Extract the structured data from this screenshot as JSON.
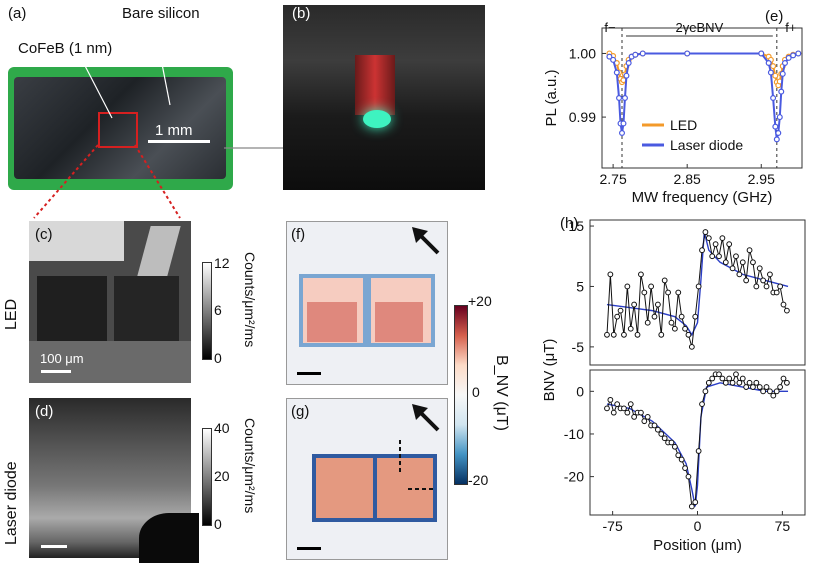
{
  "panels": {
    "a": {
      "label": "(a)",
      "bare_silicon": "Bare silicon",
      "cofeb": "CoFeB (1 nm)",
      "scale": "1 mm"
    },
    "b": {
      "label": "(b)"
    },
    "c": {
      "label": "(c)",
      "scale": "100 μm"
    },
    "d": {
      "label": "(d)"
    },
    "e": {
      "label": "(e)"
    },
    "f": {
      "label": "(f)"
    },
    "g": {
      "label": "(g)"
    },
    "h": {
      "label": "(h)"
    }
  },
  "rows": {
    "led": "LED",
    "laser": "Laser diode"
  },
  "colorbars": {
    "c": {
      "ticks": [
        "12",
        "6",
        "0"
      ],
      "label": "Counts/μm²/ms"
    },
    "d": {
      "ticks": [
        "40",
        "20",
        "0"
      ],
      "label": "Counts/μm²/ms"
    },
    "b": {
      "ticks": [
        "+20",
        "0",
        "-20"
      ],
      "label": "B_NV (μT)"
    }
  },
  "colors": {
    "led": "#f39a2a",
    "laser": "#4a5ae0",
    "diverging_pos": "#b2182b",
    "diverging_neg": "#2166ac",
    "gray": "#888888"
  },
  "chart_data": [
    {
      "id": "e",
      "type": "line",
      "xlabel": "MW frequency (GHz)",
      "ylabel": "PL (a.u.)",
      "xlim": [
        2.735,
        3.005
      ],
      "ylim": [
        0.982,
        1.004
      ],
      "xticks": [
        "2.75",
        "2.85",
        "2.95"
      ],
      "yticks": [
        "1.00",
        "0.99"
      ],
      "annotations": {
        "f_minus": "f−",
        "f_plus": "f+",
        "splitting": "2γeBNV"
      },
      "series": [
        {
          "name": "LED",
          "color": "#f39a2a",
          "x": [
            2.745,
            2.75,
            2.755,
            2.758,
            2.76,
            2.762,
            2.764,
            2.766,
            2.768,
            2.771,
            2.775,
            2.78,
            2.79,
            2.85,
            2.95,
            2.96,
            2.963,
            2.966,
            2.969,
            2.971,
            2.973,
            2.975,
            2.977,
            2.979,
            2.982,
            2.987,
            2.993,
            3.0
          ],
          "y": [
            1.0,
            0.9996,
            0.9985,
            0.997,
            0.996,
            0.9955,
            0.9958,
            0.9967,
            0.998,
            0.999,
            0.9995,
            0.9998,
            1.0,
            1.0,
            1.0,
            0.9995,
            0.999,
            0.998,
            0.9965,
            0.9955,
            0.995,
            0.9956,
            0.9968,
            0.998,
            0.999,
            0.9995,
            0.9998,
            1.0
          ]
        },
        {
          "name": "Laser diode",
          "color": "#4a5ae0",
          "x": [
            2.745,
            2.75,
            2.755,
            2.758,
            2.76,
            2.762,
            2.764,
            2.766,
            2.768,
            2.771,
            2.775,
            2.78,
            2.79,
            2.85,
            2.95,
            2.96,
            2.963,
            2.966,
            2.969,
            2.971,
            2.973,
            2.975,
            2.977,
            2.979,
            2.982,
            2.987,
            2.993,
            3.0
          ],
          "y": [
            0.9995,
            0.999,
            0.997,
            0.993,
            0.989,
            0.9875,
            0.989,
            0.993,
            0.9965,
            0.9985,
            0.9995,
            0.9998,
            1.0,
            1.0,
            1.0,
            0.9985,
            0.997,
            0.993,
            0.9885,
            0.9865,
            0.9875,
            0.99,
            0.994,
            0.9968,
            0.9985,
            0.9993,
            0.9997,
            1.0
          ]
        }
      ]
    },
    {
      "id": "h",
      "type": "line",
      "xlabel": "Position (μm)",
      "ylabel": "BNV (μT)",
      "xlim": [
        -95,
        95
      ],
      "top": {
        "ylim": [
          -8,
          16
        ],
        "yticks": [
          "15",
          "5",
          "-5"
        ],
        "data_x": [
          -80,
          -77,
          -74,
          -71,
          -68,
          -65,
          -62,
          -59,
          -56,
          -53,
          -50,
          -47,
          -44,
          -41,
          -38,
          -35,
          -32,
          -29,
          -26,
          -23,
          -20,
          -17,
          -14,
          -11,
          -8,
          -5,
          -2,
          1,
          4,
          7,
          10,
          13,
          16,
          19,
          22,
          25,
          28,
          31,
          34,
          37,
          40,
          43,
          46,
          49,
          52,
          55,
          58,
          61,
          64,
          67,
          70,
          73,
          76,
          79
        ],
        "data_y": [
          -3,
          7,
          -3,
          0,
          1,
          -3,
          5,
          -2,
          2,
          -3,
          7,
          4,
          -1,
          5,
          0,
          2,
          -3,
          6,
          4,
          -1,
          -2,
          4,
          0,
          -2,
          -3,
          -5,
          0,
          5,
          11,
          14,
          13,
          10,
          12,
          10,
          13,
          9,
          12,
          8,
          10,
          7,
          9,
          6,
          11,
          9,
          5,
          8,
          6,
          5,
          7,
          4,
          4,
          5,
          2,
          1
        ],
        "fit_x": [
          -80,
          -60,
          -40,
          -20,
          -10,
          -5,
          0,
          3,
          6,
          10,
          20,
          40,
          60,
          80
        ],
        "fit_y": [
          2,
          1.5,
          1,
          0,
          -1.5,
          -3,
          -1,
          6,
          14,
          11,
          9,
          7,
          6,
          5
        ]
      },
      "bottom": {
        "ylim": [
          -29,
          5
        ],
        "yticks": [
          "0",
          "-10",
          "-20"
        ],
        "data_x": [
          -80,
          -77,
          -74,
          -71,
          -68,
          -65,
          -62,
          -59,
          -56,
          -53,
          -50,
          -47,
          -44,
          -41,
          -38,
          -35,
          -32,
          -29,
          -26,
          -23,
          -20,
          -17,
          -14,
          -11,
          -8,
          -5,
          -2,
          1,
          4,
          7,
          10,
          13,
          16,
          19,
          22,
          25,
          28,
          31,
          34,
          37,
          40,
          43,
          46,
          49,
          52,
          55,
          58,
          61,
          64,
          67,
          70,
          73,
          76,
          79
        ],
        "data_y": [
          -4,
          -2,
          -5,
          -3,
          -4,
          -4,
          -5,
          -3,
          -6,
          -5,
          -5,
          -7,
          -6,
          -8,
          -8,
          -9,
          -10,
          -11,
          -12,
          -12,
          -13,
          -15,
          -16,
          -18,
          -20,
          -27,
          -26,
          -14,
          -3,
          0,
          2,
          3,
          4,
          4,
          3,
          2,
          3,
          2,
          4,
          2,
          3,
          1,
          2,
          1,
          2,
          1,
          0,
          1,
          0,
          -1,
          0,
          1,
          3,
          2
        ],
        "fit_x": [
          -80,
          -60,
          -40,
          -20,
          -10,
          -5,
          -2,
          0,
          3,
          8,
          20,
          40,
          60,
          80
        ],
        "fit_y": [
          -3,
          -4,
          -7,
          -12,
          -17,
          -23,
          -27,
          -22,
          -6,
          1,
          2,
          1,
          0,
          0
        ]
      }
    }
  ]
}
